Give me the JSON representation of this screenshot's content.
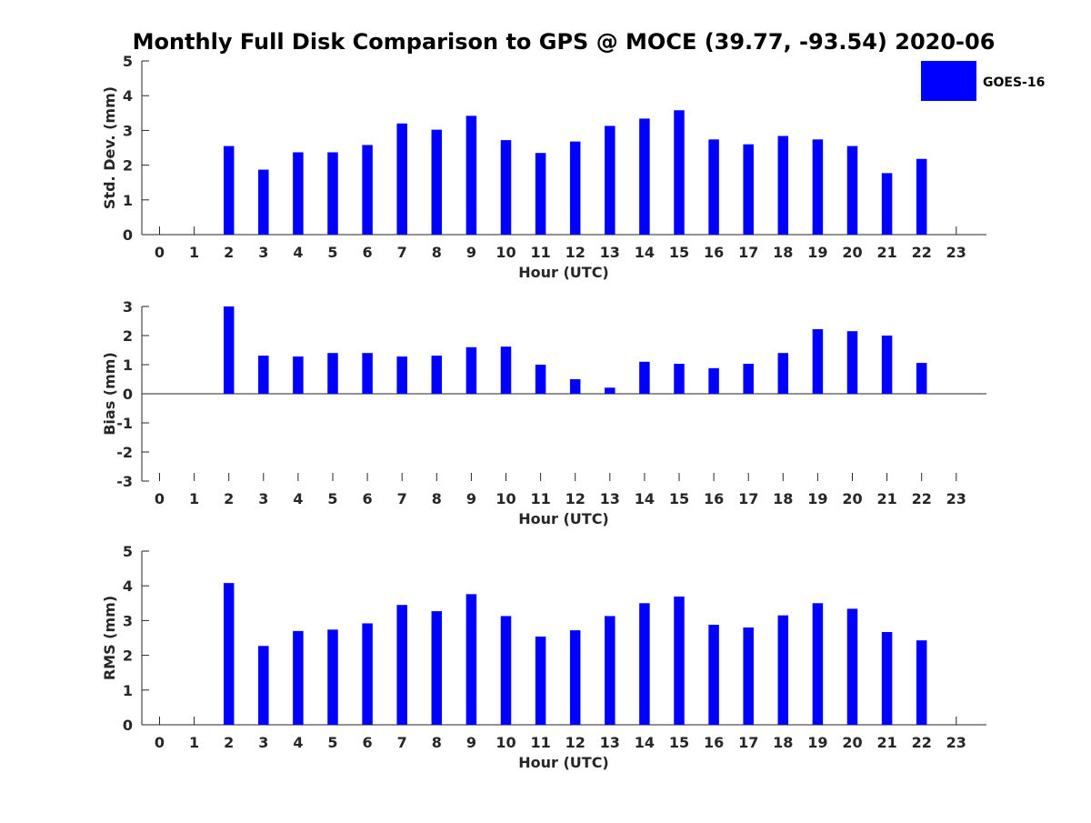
{
  "chart_data": {
    "type": "bar",
    "title": "Monthly Full Disk Comparison to GPS @ MOCE (39.77, -93.54) 2020-06",
    "legend": {
      "label": "GOES-16",
      "placement": "top-right"
    },
    "colors": {
      "bar": "#0000ff",
      "axis": "#262626",
      "text": "#262626"
    },
    "categories": [
      "0",
      "1",
      "2",
      "3",
      "4",
      "5",
      "6",
      "7",
      "8",
      "9",
      "10",
      "11",
      "12",
      "13",
      "14",
      "15",
      "16",
      "17",
      "18",
      "19",
      "20",
      "21",
      "22",
      "23"
    ],
    "panels": [
      {
        "id": "std",
        "ylabel": "Std. Dev. (mm)",
        "xlabel": "Hour (UTC)",
        "ylim": [
          0,
          5
        ],
        "yticks": [
          "0",
          "1",
          "2",
          "3",
          "4",
          "5"
        ],
        "values": [
          null,
          null,
          2.55,
          1.87,
          2.37,
          2.37,
          2.58,
          3.2,
          3.02,
          3.42,
          2.72,
          2.35,
          2.68,
          3.13,
          3.34,
          3.58,
          2.74,
          2.6,
          2.84,
          2.74,
          2.55,
          1.77,
          2.18,
          null
        ]
      },
      {
        "id": "bias",
        "ylabel": "Bias (mm)",
        "xlabel": "Hour (UTC)",
        "ylim": [
          -3,
          3
        ],
        "yticks": [
          "-3",
          "-2",
          "-1",
          "0",
          "1",
          "2",
          "3"
        ],
        "values": [
          null,
          null,
          3.0,
          1.31,
          1.28,
          1.4,
          1.4,
          1.28,
          1.31,
          1.6,
          1.62,
          1.0,
          0.5,
          0.21,
          1.1,
          1.03,
          0.88,
          1.03,
          1.4,
          2.22,
          2.15,
          2.0,
          1.06,
          null
        ]
      },
      {
        "id": "rms",
        "ylabel": "RMS (mm)",
        "xlabel": "Hour (UTC)",
        "ylim": [
          0,
          5
        ],
        "yticks": [
          "0",
          "1",
          "2",
          "3",
          "4",
          "5"
        ],
        "values": [
          null,
          null,
          4.08,
          2.27,
          2.7,
          2.74,
          2.92,
          3.45,
          3.27,
          3.76,
          3.13,
          2.54,
          2.72,
          3.13,
          3.5,
          3.69,
          2.88,
          2.8,
          3.15,
          3.5,
          3.34,
          2.67,
          2.43,
          null
        ]
      }
    ]
  }
}
